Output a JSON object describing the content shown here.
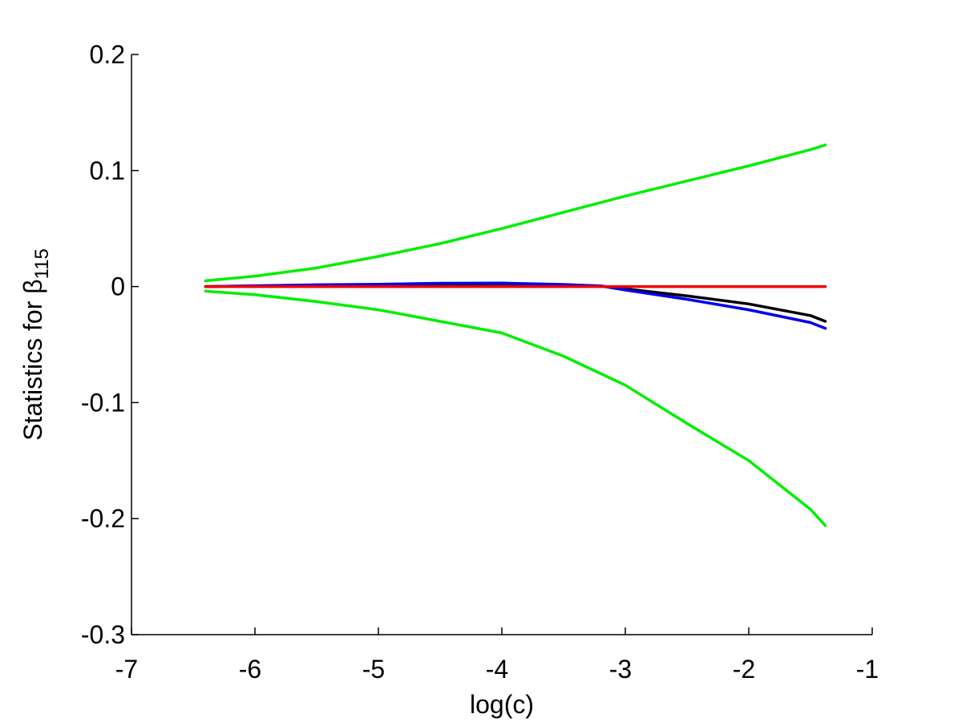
{
  "chart_data": {
    "type": "line",
    "xlabel": "log(c)",
    "ylabel_main": "Statistics for ",
    "ylabel_symbol": "β",
    "ylabel_subscript": "115",
    "xlim": [
      -7,
      -1
    ],
    "ylim": [
      -0.3,
      0.2
    ],
    "x_ticks": [
      -7,
      -6,
      -5,
      -4,
      -3,
      -2,
      -1
    ],
    "x_tick_labels": [
      "-7",
      "-6",
      "-5",
      "-4",
      "-3",
      "-2",
      "-1"
    ],
    "y_ticks": [
      -0.3,
      -0.2,
      -0.1,
      0,
      0.1,
      0.2
    ],
    "y_tick_labels": [
      "-0.3",
      "-0.2",
      "-0.1",
      "0",
      "0.1",
      "0.2"
    ],
    "grid": false,
    "legend": "none",
    "series": [
      {
        "color": "#00ee00",
        "x": [
          -6.4,
          -6.0,
          -5.5,
          -5.0,
          -4.5,
          -4.0,
          -3.5,
          -3.0,
          -2.5,
          -2.0,
          -1.5,
          -1.38
        ],
        "y": [
          0.005,
          0.009,
          0.016,
          0.026,
          0.037,
          0.05,
          0.064,
          0.078,
          0.091,
          0.104,
          0.118,
          0.122
        ]
      },
      {
        "color": "#00ee00",
        "x": [
          -6.4,
          -6.0,
          -5.5,
          -5.0,
          -4.5,
          -4.0,
          -3.5,
          -3.0,
          -2.5,
          -2.0,
          -1.5,
          -1.38
        ],
        "y": [
          -0.004,
          -0.007,
          -0.013,
          -0.02,
          -0.03,
          -0.04,
          -0.06,
          -0.085,
          -0.118,
          -0.15,
          -0.192,
          -0.206
        ]
      },
      {
        "color": "#000000",
        "x": [
          -6.4,
          -6.0,
          -5.5,
          -5.0,
          -4.5,
          -4.0,
          -3.5,
          -3.2,
          -3.0,
          -2.5,
          -2.0,
          -1.5,
          -1.38
        ],
        "y": [
          0.0,
          0.0005,
          0.001,
          0.0015,
          0.002,
          0.0025,
          0.0015,
          0.0005,
          -0.002,
          -0.008,
          -0.015,
          -0.025,
          -0.03
        ]
      },
      {
        "color": "#0000ee",
        "x": [
          -6.4,
          -6.0,
          -5.5,
          -5.0,
          -4.5,
          -4.0,
          -3.5,
          -3.2,
          -3.0,
          -2.5,
          -2.0,
          -1.5,
          -1.38
        ],
        "y": [
          0.0,
          0.0007,
          0.0015,
          0.002,
          0.0028,
          0.003,
          0.0018,
          0.0005,
          -0.003,
          -0.011,
          -0.02,
          -0.031,
          -0.036
        ]
      },
      {
        "color": "#ee0000",
        "x": [
          -6.4,
          -1.38
        ],
        "y": [
          0.0,
          0.0
        ]
      }
    ]
  }
}
